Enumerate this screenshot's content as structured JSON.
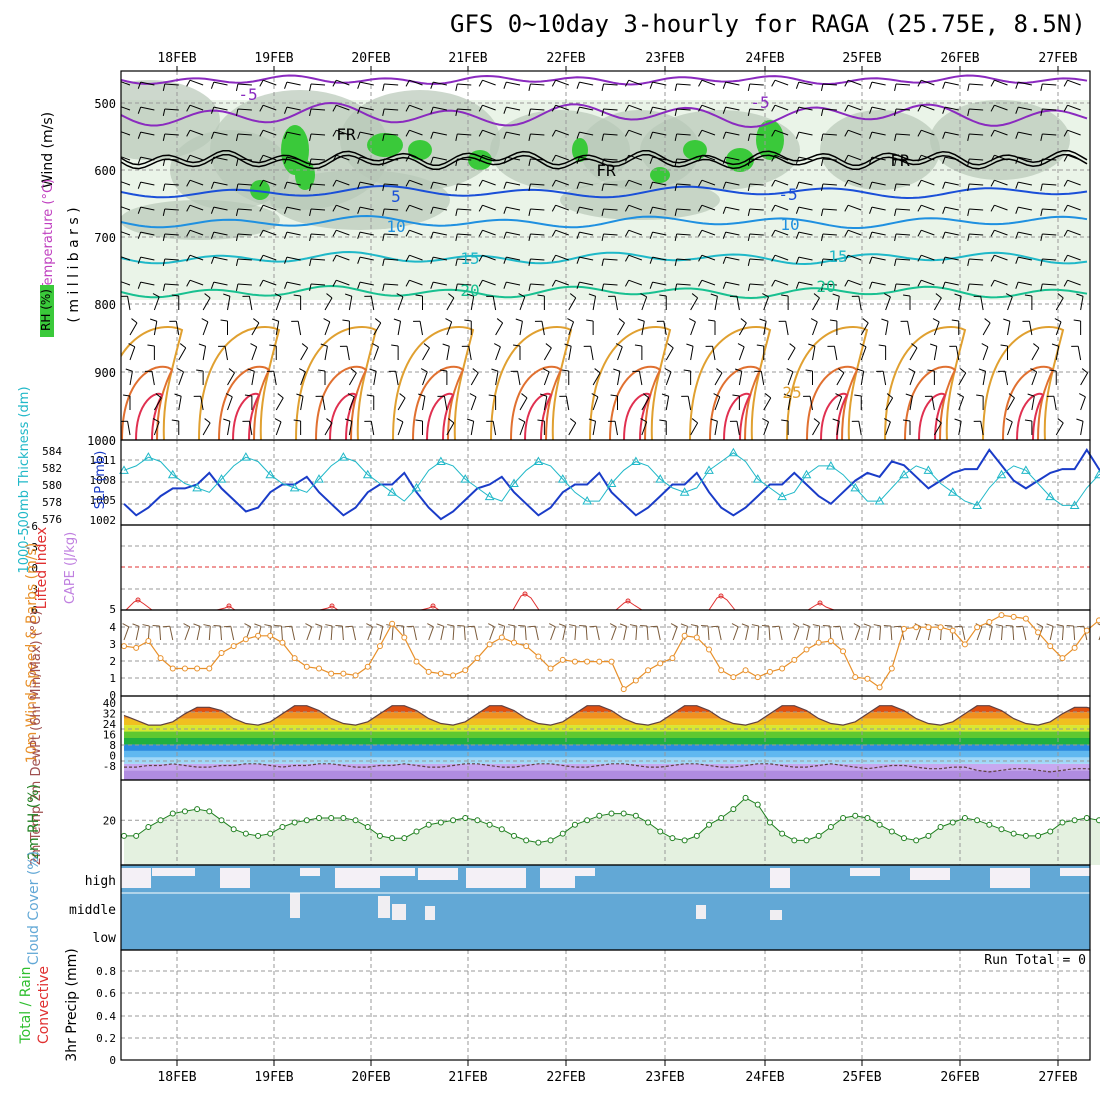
{
  "title": "GFS 0~10day 3-hourly for RAGA (25.75E, 8.5N)",
  "dates": [
    "18FEB",
    "19FEB",
    "20FEB",
    "21FEB",
    "22FEB",
    "23FEB",
    "24FEB",
    "25FEB",
    "26FEB",
    "27FEB"
  ],
  "colors": {
    "rh": "#2fbf2f",
    "temp": "#c040c0",
    "wind10": "#e8902a",
    "cloud": "#62a8d6",
    "precip_total": "#2fbf2f",
    "precip_conv": "#e03030",
    "slp": "#1a3cc8",
    "thick": "#20b8c8",
    "li": "#e03030",
    "cape": "#c080e0"
  },
  "panels": {
    "upper": {
      "ylabel_wind": "Wind (m/s)",
      "ylabel_temp": "Temperature (°C)",
      "ylabel_rh": "RH (%)",
      "ylabel_p": "( m i l l i b a r s )",
      "p_ticks": [
        "500",
        "600",
        "700",
        "800",
        "900",
        "1000"
      ],
      "labels": [
        "-5",
        "5",
        "FR",
        "FR",
        "FR",
        "-5",
        "-5",
        "10",
        "10",
        "15",
        "15",
        "20",
        "20",
        "25"
      ]
    },
    "thick": {
      "ylabel_thick": "1000-500mb Thickness (dm)",
      "ylabel_slp": "SLP (mb)",
      "thick_ticks": [
        "584",
        "582",
        "580",
        "578",
        "576"
      ],
      "slp_ticks": [
        "1011",
        "1008",
        "1005",
        "1002"
      ]
    },
    "li": {
      "ylabel_li": "Lifted Index",
      "ylabel_cape": "CAPE (J/kg)",
      "li_ticks": [
        "-6",
        "-3",
        "0",
        "3",
        "6"
      ],
      "cape_ticks": [
        "5"
      ]
    },
    "wind": {
      "ylabel": "10m Wind Speed & Barbs (m/s)",
      "ticks": [
        "4",
        "3",
        "2",
        "1",
        "0"
      ]
    },
    "temp": {
      "ylabel": "2m Temp 2m DewPt (6hr Min/Max) (°C)",
      "ticks": [
        "40",
        "32",
        "24",
        "16",
        "8",
        "0",
        "-8"
      ]
    },
    "rh": {
      "ylabel": "2m RH (%)",
      "ticks": [
        "20"
      ]
    },
    "cloud": {
      "ylabel": "Cloud Cover (%)",
      "levels": [
        "high",
        "middle",
        "low"
      ]
    },
    "precip": {
      "ylabel": "3hr Precip (mm)",
      "ylabel_total": "Total / Rain",
      "ylabel_conv": "Convective",
      "ticks": [
        "0.8",
        "0.6",
        "0.4",
        "0.2",
        "0"
      ],
      "run_total": "Run Total = 0"
    }
  },
  "chart_data": [
    {
      "type": "line",
      "title": "SLP (mb)",
      "x": "3-hourly 17FEB 12Z to 27FEB 12Z",
      "ylim": [
        1002,
        1012
      ],
      "series": [
        {
          "name": "SLP",
          "values": [
            1004.5,
            1003,
            1004,
            1005.5,
            1006.5,
            1006.5,
            1007,
            1008.5,
            1006.5,
            1005,
            1003.5,
            1004,
            1006,
            1007,
            1007,
            1008,
            1006,
            1004.5,
            1003,
            1004,
            1006,
            1007,
            1007,
            1008.5,
            1006,
            1004,
            1002.5,
            1003.5,
            1005,
            1006.5,
            1007,
            1008,
            1006,
            1004.5,
            1003,
            1004,
            1006,
            1007,
            1007,
            1008.5,
            1006,
            1004.5,
            1003,
            1004,
            1005.5,
            1007,
            1007,
            1008.5,
            1006,
            1004,
            1003,
            1004,
            1005.5,
            1007,
            1007,
            1008.5,
            1007,
            1005.5,
            1004.5,
            1006,
            1007.5,
            1008.5,
            1008,
            1010,
            1009.5,
            1008,
            1006.5,
            1007.5,
            1008.5,
            1009,
            1009,
            1011.5,
            1009.5,
            1007.5,
            1006.5,
            1007.5,
            1008.5,
            1009,
            1009,
            1011.5,
            1009,
            1007.5,
            1006.5,
            1008,
            1009.5,
            1010.5
          ]
        }
      ]
    },
    {
      "type": "line",
      "title": "1000-500mb Thickness (dm)",
      "ylim": [
        576,
        585
      ],
      "series": [
        {
          "name": "Thickness",
          "values": [
            582,
            582.5,
            583.5,
            583,
            581.5,
            580.5,
            580,
            579.5,
            581,
            582.5,
            583.5,
            583,
            581.5,
            580.5,
            580,
            579.5,
            581,
            582.5,
            583.5,
            583,
            581.5,
            580.5,
            579.5,
            578.5,
            580,
            582,
            583,
            582.5,
            581,
            580,
            579,
            578.5,
            580.5,
            582,
            583,
            582.5,
            581,
            579.5,
            578.5,
            578.5,
            580.5,
            582,
            583,
            582.5,
            581,
            580,
            579.5,
            580,
            582,
            583,
            584,
            583,
            581,
            580,
            579,
            579.5,
            581.5,
            582.5,
            582.5,
            581.5,
            580,
            578.5,
            578.5,
            580,
            581.5,
            582.5,
            582,
            580.5,
            579.5,
            578.5,
            578,
            580,
            581.5,
            582.5,
            582,
            580.5,
            579,
            578,
            578,
            580,
            581.5,
            582,
            581,
            580.5,
            579,
            579.5
          ]
        }
      ]
    },
    {
      "type": "line",
      "title": "10m Wind Speed (m/s)",
      "ylim": [
        0,
        5
      ],
      "series": [
        {
          "name": "Speed",
          "values": [
            2.9,
            2.8,
            3.2,
            2.2,
            1.6,
            1.6,
            1.6,
            1.6,
            2.5,
            2.9,
            3.3,
            3.5,
            3.5,
            3.1,
            2.2,
            1.7,
            1.6,
            1.3,
            1.3,
            1.2,
            1.7,
            2.9,
            4.2,
            3.4,
            2.0,
            1.4,
            1.3,
            1.2,
            1.5,
            2.2,
            3.0,
            3.4,
            3.1,
            2.9,
            2.3,
            1.6,
            2.1,
            2.0,
            2.0,
            2.0,
            2.0,
            0.4,
            0.9,
            1.5,
            1.9,
            2.2,
            3.5,
            3.4,
            2.7,
            1.5,
            1.1,
            1.5,
            1.1,
            1.4,
            1.6,
            2.1,
            2.7,
            3.1,
            3.2,
            2.6,
            1.1,
            1.0,
            0.5,
            1.6,
            3.9,
            4.0,
            4.0,
            4.0,
            3.8,
            3.0,
            4.0,
            4.3,
            4.7,
            4.6,
            4.5,
            3.7,
            2.9,
            2.2,
            2.8,
            3.8,
            4.4,
            4.2,
            3.5,
            2.2,
            1.3,
            1.8,
            3.7
          ]
        }
      ]
    },
    {
      "type": "area",
      "title": "2m Temp (°C)",
      "ylim": [
        -10,
        42
      ],
      "series": [
        {
          "name": "Temp",
          "values": [
            30,
            27,
            24,
            24,
            26,
            31,
            35,
            35,
            33,
            28,
            25,
            24,
            26,
            31,
            36,
            36,
            33,
            28,
            25,
            24,
            26,
            31,
            36,
            36,
            33,
            28,
            25,
            24,
            26,
            31,
            36,
            36,
            33,
            28,
            25,
            24,
            26,
            31,
            36,
            36,
            33,
            28,
            25,
            24,
            26,
            31,
            36,
            36,
            33,
            28,
            25,
            24,
            26,
            31,
            36,
            36,
            33,
            28,
            25,
            24,
            26,
            31,
            36,
            36,
            33,
            28,
            25,
            24,
            26,
            31,
            36,
            36,
            33,
            28,
            25,
            24,
            26,
            31,
            35,
            35,
            33,
            28,
            25,
            23,
            22
          ]
        },
        {
          "name": "DewPt",
          "values": [
            -2,
            -2,
            -1,
            -1,
            0,
            -1,
            -2,
            -2,
            -1,
            -1,
            0,
            0,
            -1,
            -2,
            -1,
            -1,
            0,
            0,
            -1,
            -2,
            -2,
            -1,
            -1,
            0,
            -1,
            -2,
            -2,
            -1,
            0,
            0,
            -1,
            -2,
            -2,
            -1,
            0,
            0,
            -1,
            -2,
            -2,
            -1,
            0,
            0,
            -1,
            -2,
            -2,
            -1,
            0,
            0,
            -1,
            -2,
            -2,
            -1,
            0,
            0,
            -1,
            -2,
            -2,
            -1,
            0,
            -1,
            -2,
            -3,
            -2,
            -1,
            -1,
            -2,
            -3,
            -3,
            -2,
            -2,
            -4,
            -5,
            -4,
            -3,
            -3,
            -4,
            -5,
            -4,
            -3,
            -3,
            -4,
            -5,
            -4,
            -3,
            -4
          ]
        }
      ]
    },
    {
      "type": "line",
      "title": "2m RH (%)",
      "ylim": [
        0,
        38
      ],
      "series": [
        {
          "name": "RH",
          "values": [
            13,
            13,
            17,
            20,
            23,
            24,
            25,
            24,
            20,
            16,
            14,
            13,
            14,
            17,
            19,
            20,
            21,
            21,
            21,
            20,
            17,
            13,
            12,
            12,
            15,
            18,
            19,
            20,
            21,
            20,
            18,
            16,
            13,
            11,
            10,
            11,
            14,
            18,
            20,
            22,
            23,
            23,
            22,
            19,
            15,
            12,
            11,
            13,
            18,
            21,
            25,
            30,
            27,
            19,
            14,
            11,
            11,
            13,
            17,
            21,
            22,
            21,
            18,
            15,
            12,
            11,
            13,
            17,
            19,
            21,
            20,
            18,
            16,
            14,
            13,
            13,
            15,
            19,
            20,
            21,
            20,
            16,
            12,
            10,
            11,
            13,
            16,
            18,
            18,
            16,
            15
          ]
        }
      ]
    },
    {
      "type": "bar",
      "title": "3hr Precip (mm)",
      "ylim": [
        0,
        1
      ],
      "series": [
        {
          "name": "Total / Rain",
          "values": []
        },
        {
          "name": "Convective",
          "values": []
        }
      ]
    }
  ]
}
